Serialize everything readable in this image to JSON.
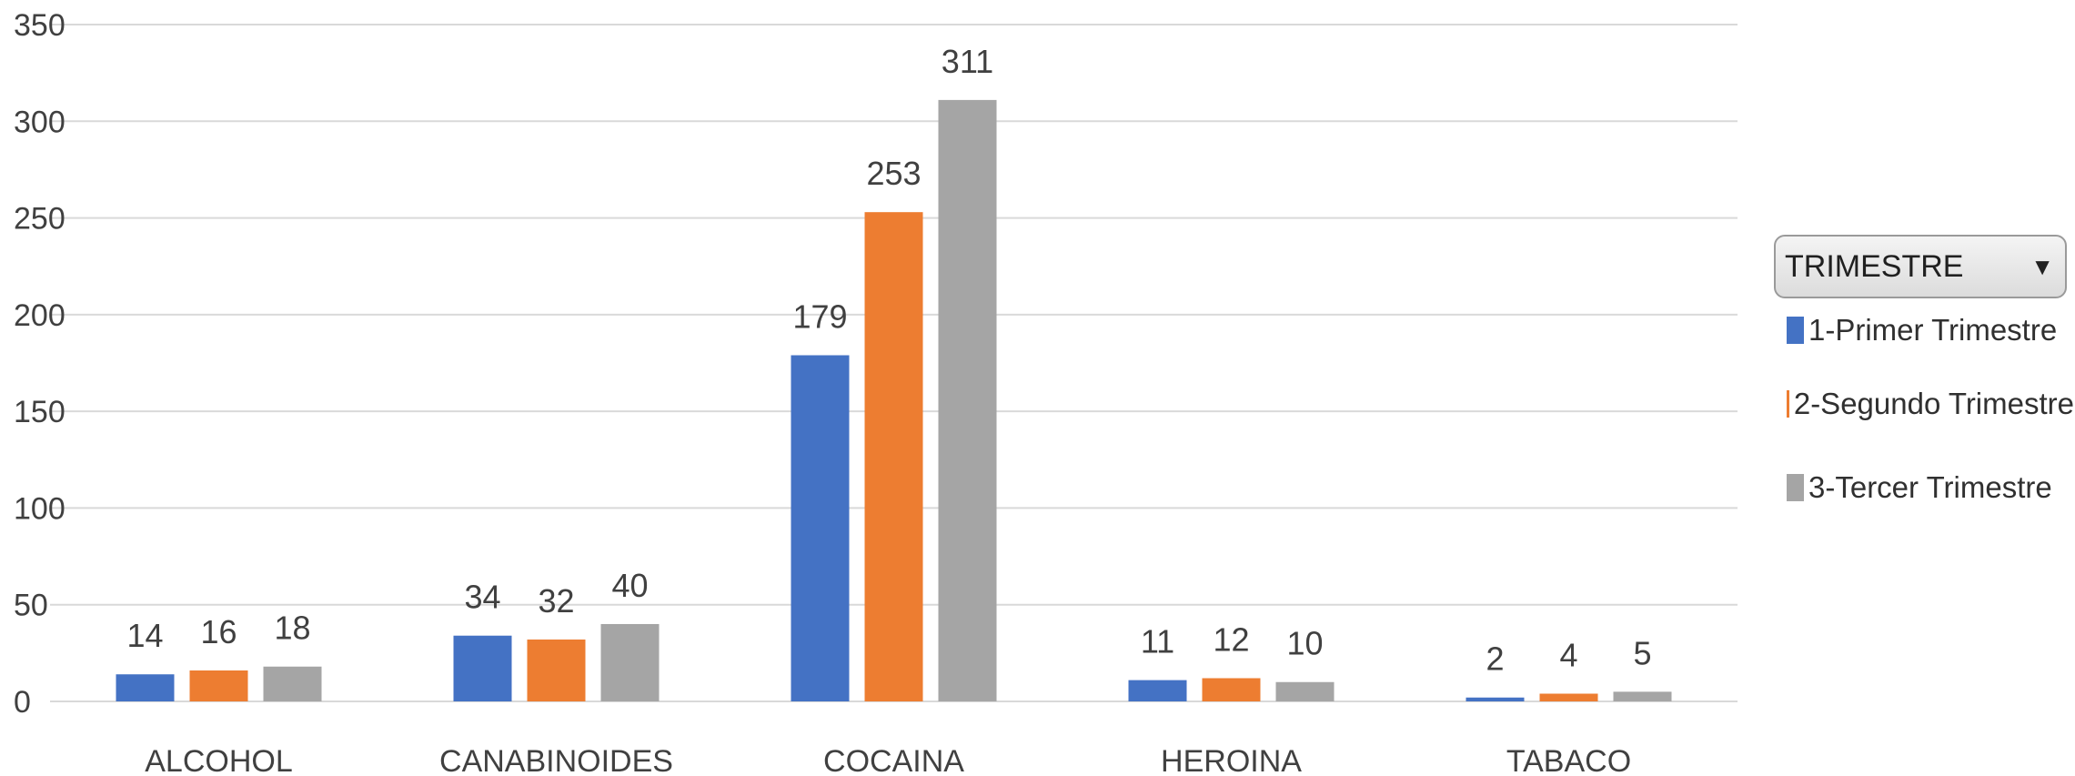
{
  "chart_data": {
    "type": "bar",
    "categories": [
      "ALCOHOL",
      "CANABINOIDES",
      "COCAINA",
      "HEROINA",
      "TABACO"
    ],
    "series": [
      {
        "name": "1-Primer Trimestre",
        "color": "#4472C4",
        "values": [
          14,
          34,
          179,
          11,
          2
        ]
      },
      {
        "name": "2-Segundo Trimestre",
        "color": "#ED7D31",
        "values": [
          16,
          32,
          253,
          12,
          4
        ]
      },
      {
        "name": "3-Tercer Trimestre",
        "color": "#A5A5A5",
        "values": [
          18,
          40,
          311,
          10,
          5
        ]
      }
    ],
    "ylim": [
      0,
      350
    ],
    "yticks": [
      0,
      50,
      100,
      150,
      200,
      250,
      300,
      350
    ],
    "grid": true,
    "data_labels": true,
    "legend_position": "right"
  },
  "legend": {
    "title": "TRIMESTRE",
    "dropdown_icon": "triangle-down-icon"
  }
}
